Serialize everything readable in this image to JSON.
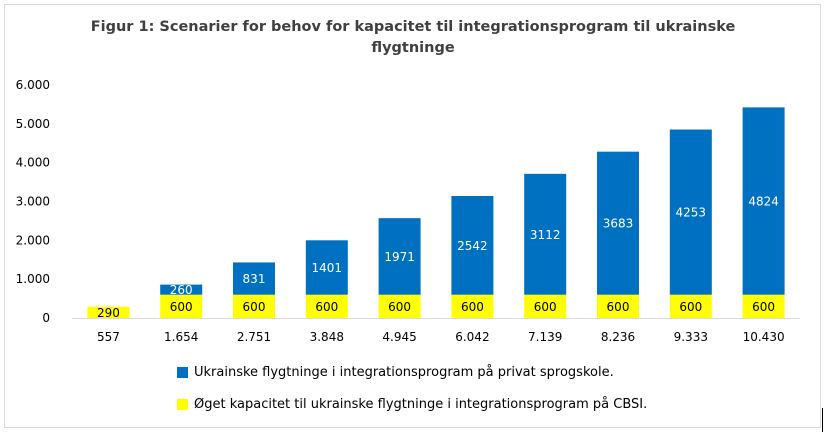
{
  "colors": {
    "blue": "#0070c0",
    "yellow": "#ffff00",
    "axis": "#d9d9d9",
    "text": "#404040"
  },
  "chart_data": {
    "type": "bar",
    "stacked": true,
    "title_lines": [
      "Figur 1: Scenarier for behov for kapacitet til integrationsprogram til ukrainske",
      "flygtninge"
    ],
    "categories": [
      "557",
      "1.654",
      "2.751",
      "3.848",
      "4.945",
      "6.042",
      "7.139",
      "8.236",
      "9.333",
      "10.430"
    ],
    "y_ticks": [
      "0",
      "1.000",
      "2.000",
      "3.000",
      "4.000",
      "5.000",
      "6.000"
    ],
    "ylim": [
      0,
      6000
    ],
    "grid": false,
    "legend_position": "bottom",
    "series": [
      {
        "name": "Øget kapacitet til ukrainske flygtninge i integrationsprogram på CBSI.",
        "color": "#ffff00",
        "values": [
          290,
          600,
          600,
          600,
          600,
          600,
          600,
          600,
          600,
          600
        ],
        "labels": [
          "290",
          "600",
          "600",
          "600",
          "600",
          "600",
          "600",
          "600",
          "600",
          "600"
        ]
      },
      {
        "name": "Ukrainske flygtninge i integrationsprogram på privat sprogskole.",
        "color": "#0070c0",
        "values": [
          0,
          260,
          831,
          1401,
          1971,
          2542,
          3112,
          3683,
          4253,
          4824
        ],
        "labels": [
          "",
          "260",
          "831",
          "1401",
          "1971",
          "2542",
          "3112",
          "3683",
          "4253",
          "4824"
        ]
      }
    ]
  }
}
